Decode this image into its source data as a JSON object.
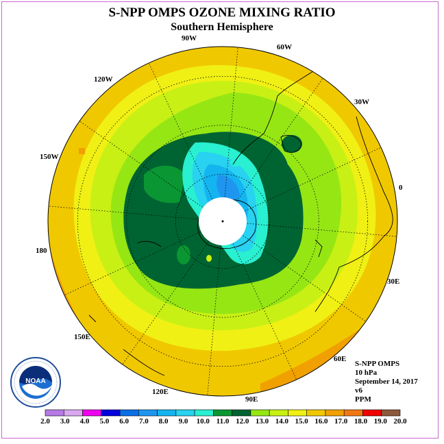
{
  "header": {
    "title": "S-NPP OMPS OZONE MIXING RATIO",
    "subtitle": "Southern Hemisphere"
  },
  "longitude_labels": [
    "90W",
    "60W",
    "30W",
    "0",
    "30E",
    "60E",
    "90E",
    "120E",
    "150E",
    "180",
    "150W",
    "120W"
  ],
  "info": {
    "instrument": "S-NPP OMPS",
    "level": "10 hPa",
    "date": "September 14, 2017",
    "version": "v6",
    "units": "PPM"
  },
  "logo": {
    "text": "NOAA",
    "icon": "noaa-logo-icon"
  },
  "colorbar": {
    "ticks": [
      "2.0",
      "3.0",
      "4.0",
      "5.0",
      "6.0",
      "7.0",
      "8.0",
      "9.0",
      "10.0",
      "11.0",
      "12.0",
      "13.0",
      "14.0",
      "15.0",
      "16.0",
      "17.0",
      "18.0",
      "19.0",
      "20.0"
    ],
    "colors": [
      "#b57ae6",
      "#d8a8f0",
      "#f000f0",
      "#0000dd",
      "#0a6ee6",
      "#1e96f0",
      "#14b4f0",
      "#28d2f0",
      "#28f0d0",
      "#0a9632",
      "#006432",
      "#96e614",
      "#c8f014",
      "#f0f014",
      "#f0c800",
      "#f0a000",
      "#f07814",
      "#f00000",
      "#8c5a3c"
    ]
  },
  "map": {
    "polar_cap_color": "#ffffff",
    "ocean_outer_color": "#f0a000"
  }
}
